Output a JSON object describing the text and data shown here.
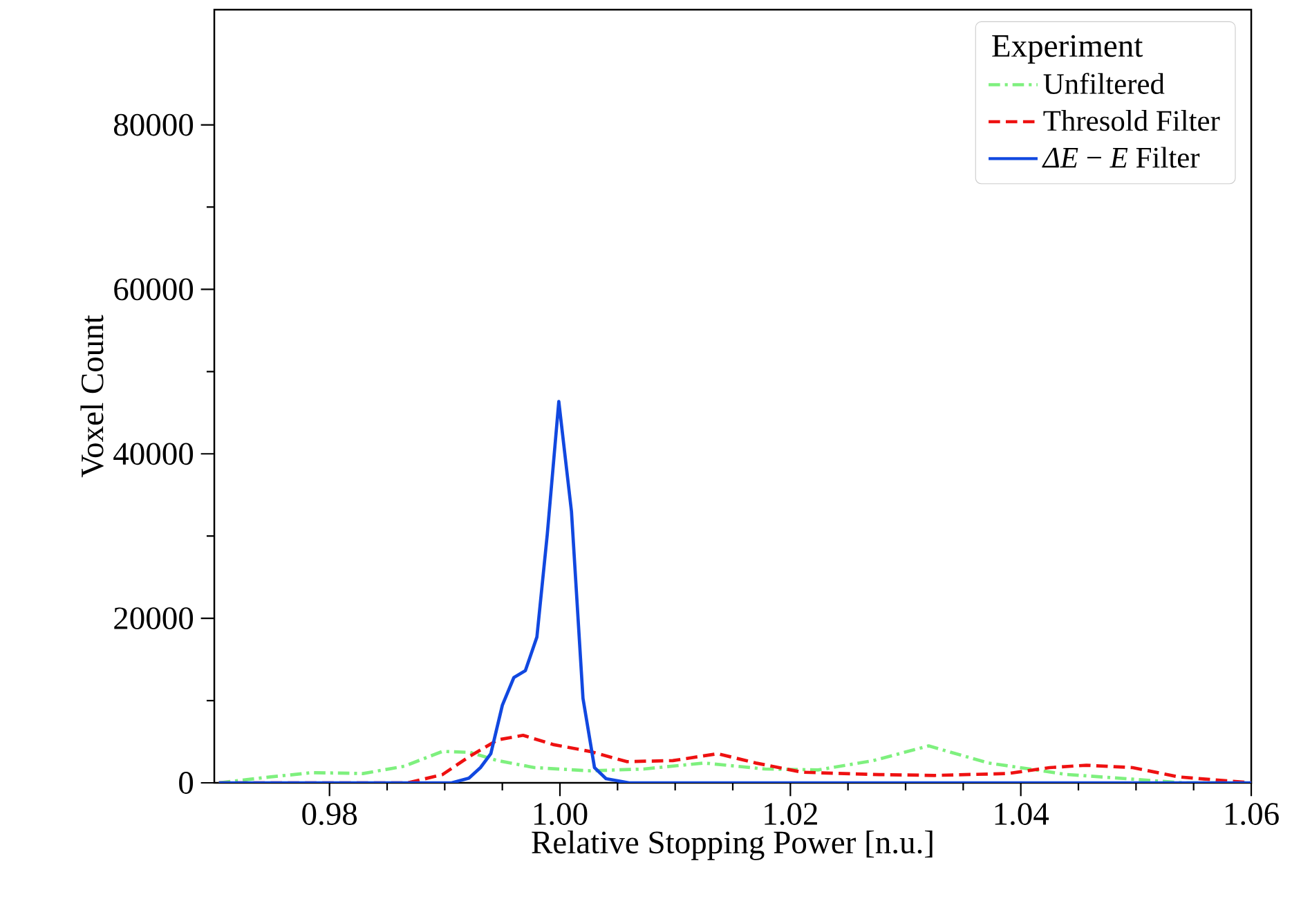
{
  "chart_data": {
    "type": "line",
    "xlabel": "Relative Stopping Power [n.u.]",
    "ylabel": "Voxel Count",
    "legend_title": "Experiment",
    "legend": "top right",
    "grid": false,
    "xlim": [
      0.97,
      1.06
    ],
    "xticks": [
      {
        "value": 0.98,
        "label": "0.98"
      },
      {
        "value": 1.0,
        "label": "1.00"
      },
      {
        "value": 1.02,
        "label": "1.02"
      },
      {
        "value": 1.04,
        "label": "1.04"
      },
      {
        "value": 1.06,
        "label": "1.06"
      }
    ],
    "ylim": [
      0,
      94000
    ],
    "yticks": [
      0,
      20000,
      40000,
      60000,
      80000
    ],
    "series": [
      {
        "name": "Unfiltered",
        "color": "#7ef07e",
        "line_style": "dashdot",
        "x": [
          0.9704,
          0.9749,
          0.9785,
          0.9829,
          0.9865,
          0.9898,
          0.9922,
          0.9946,
          0.9978,
          1.0026,
          1.0073,
          1.0125,
          1.0178,
          1.0224,
          1.0272,
          1.032,
          1.0372,
          1.044,
          1.0497,
          1.054,
          1.06
        ],
        "values": [
          0,
          720,
          1240,
          1130,
          2020,
          3820,
          3700,
          2700,
          1850,
          1460,
          1680,
          2410,
          1680,
          1570,
          2700,
          4490,
          2410,
          1010,
          450,
          0,
          0
        ]
      },
      {
        "name": "Thresold Filter",
        "color": "#ee1111",
        "line_style": "dashed",
        "x": [
          0.9704,
          0.9868,
          0.9898,
          0.9922,
          0.9946,
          0.9968,
          0.9994,
          1.0026,
          1.0058,
          1.0098,
          1.0137,
          1.017,
          1.021,
          1.0277,
          1.0325,
          1.0389,
          1.0425,
          1.0457,
          1.0497,
          1.0537,
          1.06
        ],
        "values": [
          0,
          0,
          1000,
          3250,
          5220,
          5780,
          4660,
          3820,
          2580,
          2700,
          3540,
          2410,
          1290,
          1000,
          900,
          1130,
          1850,
          2140,
          1850,
          720,
          0
        ]
      },
      {
        "name": "*ΔE* − *E* Filter",
        "color": "#1148e0",
        "line_style": "solid",
        "x": [
          0.9704,
          0.9906,
          0.9921,
          0.9931,
          0.994,
          0.995,
          0.996,
          0.997,
          0.998,
          0.9989,
          0.9999,
          1.001,
          1.002,
          1.003,
          1.004,
          1.006,
          1.06
        ],
        "values": [
          0,
          0,
          560,
          1850,
          3540,
          9430,
          12800,
          13640,
          17730,
          30200,
          46360,
          33000,
          10270,
          1850,
          500,
          0,
          0
        ]
      }
    ]
  }
}
